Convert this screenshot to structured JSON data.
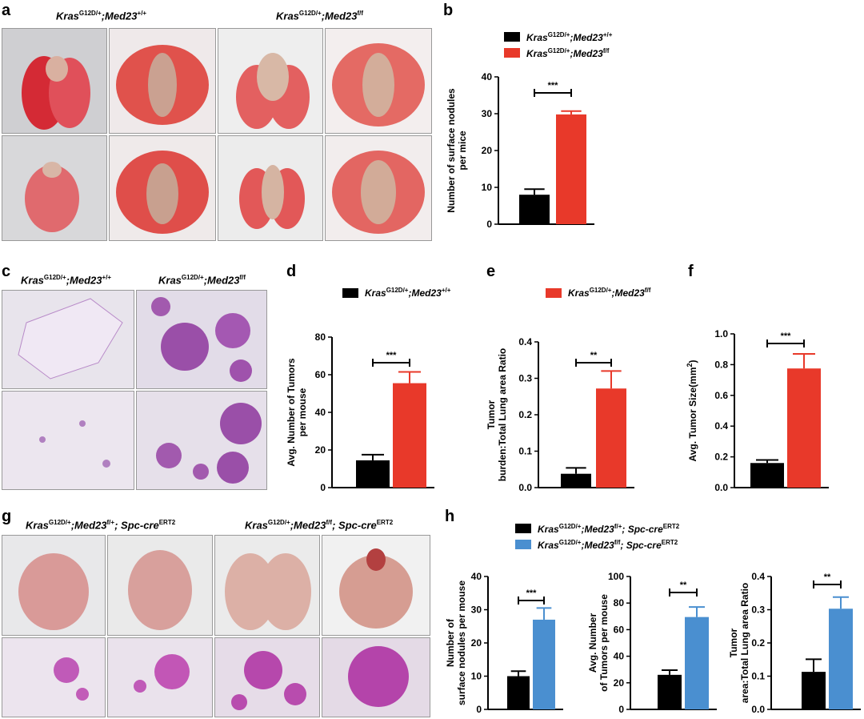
{
  "panels": {
    "a": {
      "label": "a",
      "group1": "Kras",
      "group1_sup": "G12D/+",
      "group1_rest": ";Med23",
      "group1_sup2": "+/+",
      "group2": "Kras",
      "group2_sup": "G12D/+",
      "group2_rest": ";Med23",
      "group2_sup2": "f/f"
    },
    "c": {
      "label": "c",
      "group1": "Kras",
      "group1_sup": "G12D/+",
      "group1_rest": ";Med23",
      "group1_sup2": "+/+",
      "group2": "Kras",
      "group2_sup": "G12D/+",
      "group2_rest": ";Med23",
      "group2_sup2": "f/f"
    },
    "g": {
      "label": "g",
      "group1": "Kras",
      "group1_sup": "G12D/+",
      "group1_rest": ";Med23",
      "group1_sup2": "f/+",
      "group1_rest2": "; Spc-cre",
      "group1_sup3": "ERT2",
      "group2": "Kras",
      "group2_sup": "G12D/+",
      "group2_rest": ";Med23",
      "group2_sup2": "f/f",
      "group2_rest2": "; Spc-cre",
      "group2_sup3": "ERT2"
    },
    "b_label": "b",
    "d_label": "d",
    "e_label": "e",
    "f_label": "f",
    "h_label": "h"
  },
  "legends": {
    "wt": {
      "main": "Kras",
      "sup": "G12D/+",
      "rest": ";Med23",
      "sup2": "+/+"
    },
    "ko": {
      "main": "Kras",
      "sup": "G12D/+",
      "rest": ";Med23",
      "sup2": "f/f"
    },
    "h_ctrl": {
      "main": "Kras",
      "sup": "G12D/+",
      "rest": ";Med23",
      "sup2": "f/+",
      "rest2": "; Spc-cre",
      "sup3": "ERT2"
    },
    "h_ko": {
      "main": "Kras",
      "sup": "G12D/+",
      "rest": ";Med23",
      "sup2": "f/f",
      "rest2": "; Spc-cre",
      "sup3": "ERT2"
    }
  },
  "colors": {
    "black": "#000000",
    "red": "#e8392a",
    "blue": "#4a8fd0"
  },
  "chart_data": [
    {
      "id": "b",
      "type": "bar",
      "categories": [
        "Kras G12D/+;Med23 +/+",
        "Kras G12D/+;Med23 f/f"
      ],
      "values": [
        8,
        29.8
      ],
      "errors": [
        1.5,
        0.9
      ],
      "ylim": [
        0,
        40
      ],
      "ticks": [
        0,
        10,
        20,
        30,
        40
      ],
      "ylabel": [
        "Number of surface nodules",
        "per mice"
      ],
      "significance": "***"
    },
    {
      "id": "d",
      "type": "bar",
      "categories": [
        "Kras G12D/+;Med23 +/+",
        "Kras G12D/+;Med23 f/f"
      ],
      "values": [
        14.5,
        55.5
      ],
      "errors": [
        3,
        6
      ],
      "ylim": [
        0,
        80
      ],
      "ticks": [
        0,
        20,
        40,
        60,
        80
      ],
      "ylabel": [
        "Avg. Number of Tumors",
        "per mouse"
      ],
      "significance": "***"
    },
    {
      "id": "e",
      "type": "bar",
      "categories": [
        "Kras G12D/+;Med23 +/+",
        "Kras G12D/+;Med23 f/f"
      ],
      "values": [
        0.038,
        0.272
      ],
      "errors": [
        0.016,
        0.048
      ],
      "ylim": [
        0,
        0.4
      ],
      "ticks": [
        "0.0",
        "0.1",
        "0.2",
        "0.3",
        "0.4"
      ],
      "ylabel": [
        "Tumor",
        "burden:Total Lung area Ratio"
      ],
      "significance": "**"
    },
    {
      "id": "f",
      "type": "bar",
      "categories": [
        "Kras G12D/+;Med23 +/+",
        "Kras G12D/+;Med23 f/f"
      ],
      "values": [
        0.16,
        0.775
      ],
      "errors": [
        0.02,
        0.095
      ],
      "ylim": [
        0,
        1.0
      ],
      "ticks": [
        "0.0",
        "0.2",
        "0.4",
        "0.6",
        "0.8",
        "1.0"
      ],
      "ylabel": [
        "Avg. Tumor Size(mm",
        "2",
        ")"
      ],
      "significance": "***"
    },
    {
      "id": "h1",
      "type": "bar",
      "categories": [
        "Kras G12D/+;Med23 f/+;Spc-cre ERT2",
        "Kras G12D/+;Med23 f/f;Spc-cre ERT2"
      ],
      "values": [
        10,
        27
      ],
      "errors": [
        1.5,
        3.5
      ],
      "ylim": [
        0,
        40
      ],
      "ticks": [
        0,
        10,
        20,
        30,
        40
      ],
      "ylabel": [
        "Number of",
        "surface nodules per mouse"
      ],
      "significance": "***"
    },
    {
      "id": "h2",
      "type": "bar",
      "categories": [
        "Kras G12D/+;Med23 f/+;Spc-cre ERT2",
        "Kras G12D/+;Med23 f/f;Spc-cre ERT2"
      ],
      "values": [
        26,
        69.5
      ],
      "errors": [
        3.5,
        7.5
      ],
      "ylim": [
        0,
        100
      ],
      "ticks": [
        0,
        20,
        40,
        60,
        80,
        100
      ],
      "ylabel": [
        "Avg. Number",
        "of Tumors per mouse"
      ],
      "significance": "**"
    },
    {
      "id": "h3",
      "type": "bar",
      "categories": [
        "Kras G12D/+;Med23 f/+;Spc-cre ERT2",
        "Kras G12D/+;Med23 f/f;Spc-cre ERT2"
      ],
      "values": [
        0.113,
        0.303
      ],
      "errors": [
        0.038,
        0.035
      ],
      "ylim": [
        0,
        0.4
      ],
      "ticks": [
        "0.0",
        "0.1",
        "0.2",
        "0.3",
        "0.4"
      ],
      "ylabel": [
        "Tumor",
        "area:Total Lung area Ratio"
      ],
      "significance": "**"
    }
  ]
}
